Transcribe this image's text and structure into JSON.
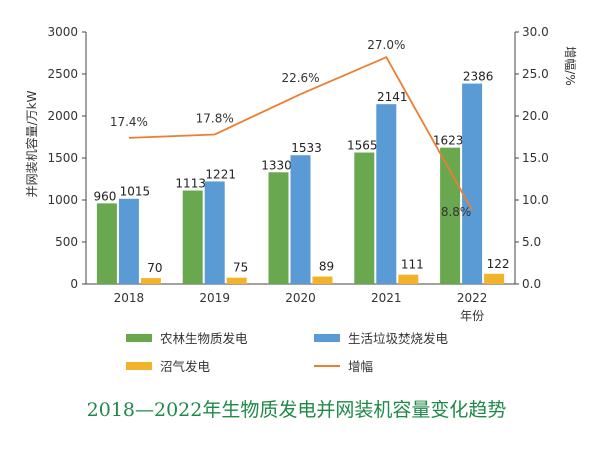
{
  "colors": {
    "series1": "#6aa84f",
    "series2": "#5b9bd5",
    "series3": "#f2b32c",
    "line": "#ed7d31",
    "caption": "#1f8a47"
  },
  "chart_data": {
    "type": "bar",
    "title": "2018—2022年生物质发电并网装机容量变化趋势",
    "categories": [
      "2018",
      "2019",
      "2020",
      "2021",
      "2022"
    ],
    "xlabel": "年份",
    "ylabel": "并网装机容量/万kW",
    "ylabel_right": "增幅/%",
    "ylim": [
      0,
      3000
    ],
    "yticks": [
      0,
      500,
      1000,
      1500,
      2000,
      2500,
      3000
    ],
    "ylim_right": [
      0,
      30
    ],
    "yticks_right": [
      "0.0",
      "5.0",
      "10.0",
      "15.0",
      "20.0",
      "25.0",
      "30.0"
    ],
    "grid": false,
    "legend_position": "bottom",
    "series": [
      {
        "name": "农林生物质发电",
        "type": "bar",
        "values": [
          960,
          1113,
          1330,
          1565,
          1623
        ]
      },
      {
        "name": "生活垃圾焚烧发电",
        "type": "bar",
        "values": [
          1015,
          1221,
          1533,
          2141,
          2386
        ]
      },
      {
        "name": "沼气发电",
        "type": "bar",
        "values": [
          70,
          75,
          89,
          111,
          122
        ]
      },
      {
        "name": "增幅",
        "type": "line",
        "axis": "right",
        "values": [
          17.4,
          17.8,
          22.6,
          27.0,
          8.8
        ],
        "labels": [
          "17.4%",
          "17.8%",
          "22.6%",
          "27.0%",
          "8.8%"
        ]
      }
    ]
  }
}
